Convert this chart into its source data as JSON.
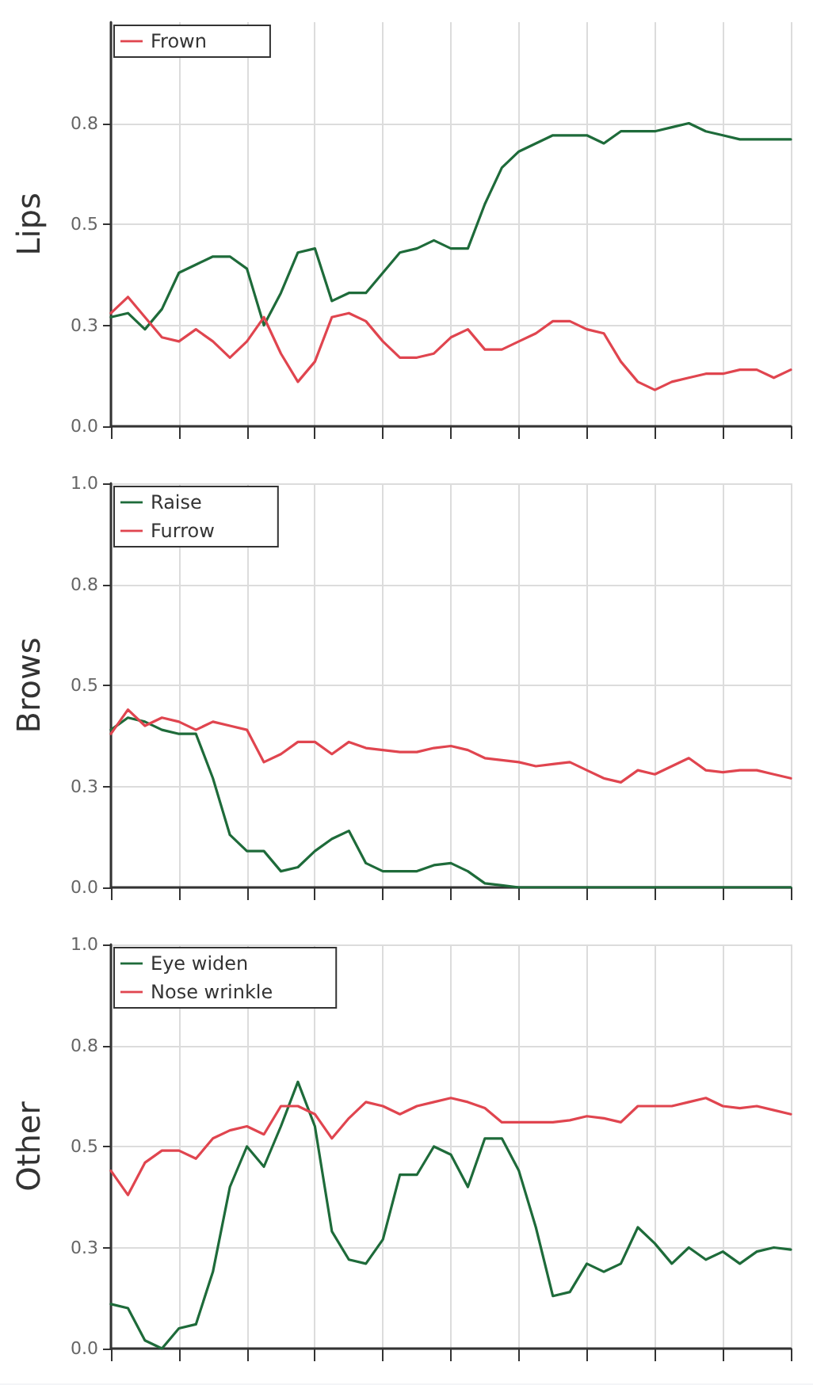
{
  "chart_data": [
    {
      "type": "line",
      "ylabel": "Lips",
      "ylim": [
        0,
        1
      ],
      "grid": true,
      "legend": "top left",
      "tick_labels": "y",
      "marker": "none",
      "line_style": "solid",
      "categories": [
        null,
        null,
        null,
        null,
        null,
        null,
        null,
        null,
        null,
        null,
        null,
        null,
        null,
        null,
        null,
        null,
        null,
        null,
        null,
        null,
        null,
        null,
        null,
        null,
        null,
        null,
        null,
        null,
        null,
        null,
        null,
        null,
        null,
        null,
        null,
        null,
        null,
        null,
        null,
        null,
        null
      ],
      "yticks": [
        {
          "value": 0,
          "label": "0.0"
        },
        {
          "value": 0.25,
          "label": "0.3"
        },
        {
          "value": 0.5,
          "label": "0.5"
        },
        {
          "value": 0.75,
          "label": "0.8"
        }
      ],
      "series": [
        {
          "color": "#1e6b3a",
          "values": [
            0.27,
            0.28,
            0.24,
            0.29,
            0.38,
            0.4,
            0.42,
            0.42,
            0.39,
            0.25,
            0.33,
            0.43,
            0.44,
            0.31,
            0.33,
            0.33,
            0.38,
            0.43,
            0.44,
            0.46,
            0.44,
            0.44,
            0.55,
            0.64,
            0.68,
            0.7,
            0.72,
            0.72,
            0.72,
            0.7,
            0.73,
            0.73,
            0.73,
            0.74,
            0.75,
            0.73,
            0.72,
            0.71,
            0.71,
            0.71,
            0.71
          ]
        },
        {
          "name": "Frown",
          "color": "#e0454f",
          "values": [
            0.28,
            0.32,
            0.27,
            0.22,
            0.21,
            0.24,
            0.21,
            0.17,
            0.21,
            0.27,
            0.18,
            0.11,
            0.16,
            0.27,
            0.28,
            0.26,
            0.21,
            0.17,
            0.17,
            0.18,
            0.22,
            0.24,
            0.19,
            0.19,
            0.21,
            0.23,
            0.26,
            0.26,
            0.24,
            0.23,
            0.16,
            0.11,
            0.09,
            0.11,
            0.12,
            0.13,
            0.13,
            0.14,
            0.14,
            0.12,
            0.14
          ]
        }
      ]
    },
    {
      "type": "line",
      "ylabel": "Brows",
      "ylim": [
        0,
        1
      ],
      "grid": true,
      "legend": "top left",
      "tick_labels": "y",
      "marker": "none",
      "line_style": "solid",
      "categories": [
        null,
        null,
        null,
        null,
        null,
        null,
        null,
        null,
        null,
        null,
        null,
        null,
        null,
        null,
        null,
        null,
        null,
        null,
        null,
        null,
        null,
        null,
        null,
        null,
        null,
        null,
        null,
        null,
        null,
        null,
        null,
        null,
        null,
        null,
        null,
        null,
        null,
        null,
        null,
        null,
        null
      ],
      "yticks": [
        {
          "value": 0,
          "label": "0.0"
        },
        {
          "value": 0.25,
          "label": "0.3"
        },
        {
          "value": 0.5,
          "label": "0.5"
        },
        {
          "value": 0.75,
          "label": "0.8"
        },
        {
          "value": 1,
          "label": "1.0"
        }
      ],
      "series": [
        {
          "name": "Raise",
          "color": "#1e6b3a",
          "values": [
            0.39,
            0.42,
            0.41,
            0.39,
            0.38,
            0.38,
            0.27,
            0.13,
            0.09,
            0.09,
            0.04,
            0.05,
            0.09,
            0.12,
            0.14,
            0.06,
            0.04,
            0.04,
            0.04,
            0.055,
            0.06,
            0.04,
            0.01,
            0.005,
            0,
            0,
            0,
            0,
            0,
            0,
            0,
            0,
            0,
            0,
            0,
            0,
            0,
            0,
            0,
            0,
            0
          ]
        },
        {
          "name": "Furrow",
          "color": "#e0454f",
          "values": [
            0.38,
            0.44,
            0.4,
            0.42,
            0.41,
            0.39,
            0.41,
            0.4,
            0.39,
            0.31,
            0.33,
            0.36,
            0.36,
            0.33,
            0.36,
            0.345,
            0.34,
            0.335,
            0.335,
            0.345,
            0.35,
            0.34,
            0.32,
            0.315,
            0.31,
            0.3,
            0.305,
            0.31,
            0.29,
            0.27,
            0.26,
            0.29,
            0.28,
            0.3,
            0.32,
            0.29,
            0.285,
            0.29,
            0.29,
            0.28,
            0.27
          ]
        }
      ]
    },
    {
      "type": "line",
      "ylabel": "Other",
      "ylim": [
        0,
        1
      ],
      "grid": true,
      "legend": "top left",
      "tick_labels": "y",
      "marker": "none",
      "line_style": "solid",
      "categories": [
        null,
        null,
        null,
        null,
        null,
        null,
        null,
        null,
        null,
        null,
        null,
        null,
        null,
        null,
        null,
        null,
        null,
        null,
        null,
        null,
        null,
        null,
        null,
        null,
        null,
        null,
        null,
        null,
        null,
        null,
        null,
        null,
        null,
        null,
        null,
        null,
        null,
        null,
        null,
        null,
        null
      ],
      "yticks": [
        {
          "value": 0,
          "label": "0.0"
        },
        {
          "value": 0.25,
          "label": "0.3"
        },
        {
          "value": 0.5,
          "label": "0.5"
        },
        {
          "value": 0.75,
          "label": "0.8"
        },
        {
          "value": 1,
          "label": "1.0"
        }
      ],
      "series": [
        {
          "name": "Eye widen",
          "color": "#1e6b3a",
          "values": [
            0.11,
            0.1,
            0.02,
            0.0,
            0.05,
            0.06,
            0.19,
            0.4,
            0.5,
            0.45,
            0.55,
            0.66,
            0.55,
            0.29,
            0.22,
            0.21,
            0.27,
            0.43,
            0.43,
            0.5,
            0.48,
            0.4,
            0.52,
            0.52,
            0.44,
            0.3,
            0.13,
            0.14,
            0.21,
            0.19,
            0.21,
            0.3,
            0.26,
            0.21,
            0.25,
            0.22,
            0.24,
            0.21,
            0.24,
            0.25,
            0.245
          ]
        },
        {
          "name": "Nose wrinkle",
          "color": "#e0454f",
          "values": [
            0.44,
            0.38,
            0.46,
            0.49,
            0.49,
            0.47,
            0.52,
            0.54,
            0.55,
            0.53,
            0.6,
            0.6,
            0.58,
            0.52,
            0.57,
            0.61,
            0.6,
            0.58,
            0.6,
            0.61,
            0.62,
            0.61,
            0.595,
            0.56,
            0.56,
            0.56,
            0.56,
            0.565,
            0.575,
            0.57,
            0.56,
            0.6,
            0.6,
            0.6,
            0.61,
            0.62,
            0.6,
            0.595,
            0.6,
            0.59,
            0.58
          ]
        }
      ]
    }
  ]
}
